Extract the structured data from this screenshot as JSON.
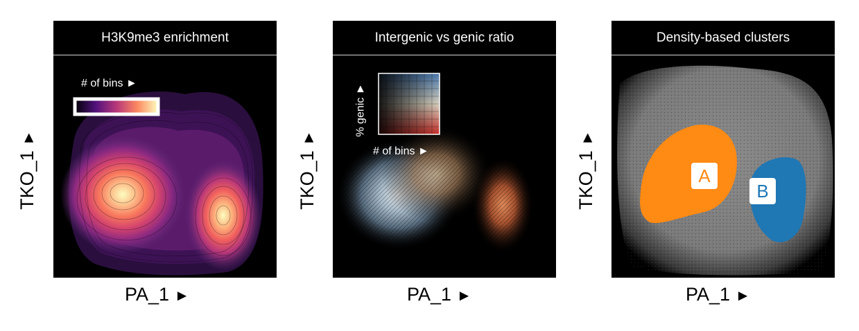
{
  "panels": [
    {
      "title": "H3K9me3 enrichment",
      "xlabel": "PA_1",
      "ylabel": "TKO_1",
      "legend_label": "# of bins",
      "legend_arrow": "►",
      "colormap": "magma"
    },
    {
      "title": "Intergenic vs genic ratio",
      "xlabel": "PA_1",
      "legend_xlabel": "# of bins",
      "legend_xarrow": "►",
      "legend_ylabel": "% genic",
      "legend_yarrow": "►",
      "colormap": "2d-blue-red"
    },
    {
      "title": "Density-based clusters",
      "xlabel": "PA_1",
      "ylabel": "TKO_1",
      "clusters": [
        {
          "label": "A",
          "color": "#ff8a14"
        },
        {
          "label": "B",
          "color": "#1f77b4"
        }
      ]
    }
  ],
  "axis_arrow": "►",
  "ylabel_arrow": "►"
}
